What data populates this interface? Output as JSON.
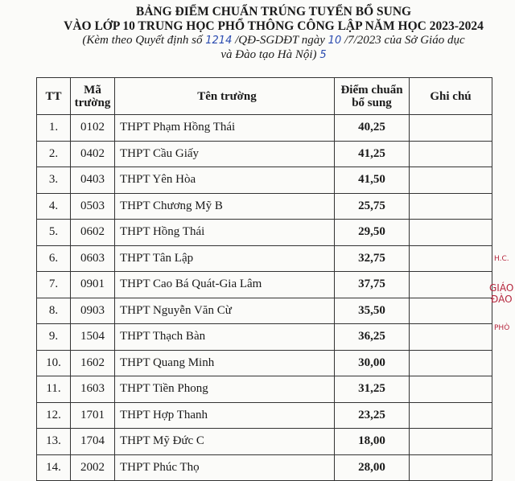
{
  "header": {
    "title_line1": "BẢNG ĐIỂM CHUẨN TRÚNG TUYỂN BỔ SUNG",
    "title_line2": "VÀO LỚP 10 TRUNG HỌC PHỔ THÔNG CÔNG LẬP NĂM HỌC 2023-2024",
    "subtitle_a": "(Kèm theo Quyết định số ",
    "decision_number": "1214",
    "subtitle_b": " /QĐ-SGDĐT ngày ",
    "decision_day": "10",
    "subtitle_c": " /7/2023 của Sở Giáo dục",
    "subtitle_line2": "và Đào tạo Hà Nội)",
    "handwritten_mark": "5"
  },
  "table": {
    "columns": [
      "TT",
      "Mã trường",
      "Tên trường",
      "Điểm chuẩn bổ sung",
      "Ghi chú"
    ],
    "rows": [
      {
        "tt": "1.",
        "ma": "0102",
        "ten": "THPT Phạm Hồng Thái",
        "diem": "40,25",
        "ghichu": ""
      },
      {
        "tt": "2.",
        "ma": "0402",
        "ten": "THPT Cầu Giấy",
        "diem": "41,25",
        "ghichu": ""
      },
      {
        "tt": "3.",
        "ma": "0403",
        "ten": "THPT Yên Hòa",
        "diem": "41,50",
        "ghichu": ""
      },
      {
        "tt": "4.",
        "ma": "0503",
        "ten": "THPT Chương Mỹ B",
        "diem": "25,75",
        "ghichu": ""
      },
      {
        "tt": "5.",
        "ma": "0602",
        "ten": "THPT Hồng Thái",
        "diem": "29,50",
        "ghichu": ""
      },
      {
        "tt": "6.",
        "ma": "0603",
        "ten": "THPT Tân Lập",
        "diem": "32,75",
        "ghichu": ""
      },
      {
        "tt": "7.",
        "ma": "0901",
        "ten": "THPT Cao Bá Quát-Gia Lâm",
        "diem": "37,75",
        "ghichu": ""
      },
      {
        "tt": "8.",
        "ma": "0903",
        "ten": "THPT Nguyễn Văn Cừ",
        "diem": "35,50",
        "ghichu": ""
      },
      {
        "tt": "9.",
        "ma": "1504",
        "ten": "THPT Thạch Bàn",
        "diem": "36,25",
        "ghichu": ""
      },
      {
        "tt": "10.",
        "ma": "1602",
        "ten": "THPT Quang Minh",
        "diem": "30,00",
        "ghichu": ""
      },
      {
        "tt": "11.",
        "ma": "1603",
        "ten": "THPT Tiền Phong",
        "diem": "31,25",
        "ghichu": ""
      },
      {
        "tt": "12.",
        "ma": "1701",
        "ten": "THPT Hợp Thanh",
        "diem": "23,25",
        "ghichu": ""
      },
      {
        "tt": "13.",
        "ma": "1704",
        "ten": "THPT Mỹ Đức C",
        "diem": "18,00",
        "ghichu": ""
      },
      {
        "tt": "14.",
        "ma": "2002",
        "ten": "THPT Phúc Thọ",
        "diem": "28,00",
        "ghichu": ""
      }
    ]
  },
  "stamp": {
    "line1": "H.C.",
    "line2": "GIÁO",
    "line3": "ĐÀO T",
    "line4": "PHÒ",
    "color": "#b5263d"
  }
}
